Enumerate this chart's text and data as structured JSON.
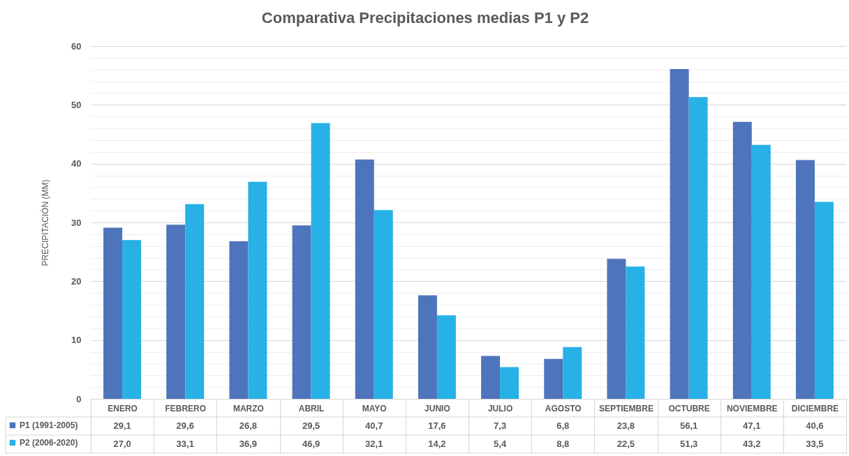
{
  "chart_data": {
    "type": "bar",
    "title": "Comparativa Precipitaciones medias P1 y P2",
    "ylabel": "PRECIPITACIÓN (MM)",
    "categories": [
      "ENERO",
      "FEBRERO",
      "MARZO",
      "ABRIL",
      "MAYO",
      "JUNIO",
      "JULIO",
      "AGOSTO",
      "SEPTIEMBRE",
      "OCTUBRE",
      "NOVIEMBRE",
      "DICIEMBRE"
    ],
    "series": [
      {
        "name": "P1 (1991-2005)",
        "color": "#4e74bb",
        "values": [
          29.1,
          29.6,
          26.8,
          29.5,
          40.7,
          17.6,
          7.3,
          6.8,
          23.8,
          56.1,
          47.1,
          40.6
        ],
        "value_labels": [
          "29,1",
          "29,6",
          "26,8",
          "29,5",
          "40,7",
          "17,6",
          "7,3",
          "6,8",
          "23,8",
          "56,1",
          "47,1",
          "40,6"
        ]
      },
      {
        "name": "P2 (2006-2020)",
        "color": "#27b1e6",
        "values": [
          27.0,
          33.1,
          36.9,
          46.9,
          32.1,
          14.2,
          5.4,
          8.8,
          22.5,
          51.3,
          43.2,
          33.5
        ],
        "value_labels": [
          "27,0",
          "33,1",
          "36,9",
          "46,9",
          "32,1",
          "14,2",
          "5,4",
          "8,8",
          "22,5",
          "51,3",
          "43,2",
          "33,5"
        ]
      }
    ],
    "ylim": [
      0,
      60
    ],
    "yticks": [
      0,
      {
        "value": 2,
        "label": null
      },
      {
        "value": 4,
        "label": null
      },
      {
        "value": 6,
        "label": null
      },
      {
        "value": 8,
        "label": null
      },
      10,
      {
        "value": 12,
        "label": null
      },
      {
        "value": 14,
        "label": null
      },
      {
        "value": 16,
        "label": null
      },
      {
        "value": 18,
        "label": null
      },
      20,
      {
        "value": 22,
        "label": null
      },
      {
        "value": 24,
        "label": null
      },
      {
        "value": 26,
        "label": null
      },
      {
        "value": 28,
        "label": null
      },
      30,
      {
        "value": 32,
        "label": null
      },
      {
        "value": 34,
        "label": null
      },
      {
        "value": 36,
        "label": null
      },
      {
        "value": 38,
        "label": null
      },
      40,
      {
        "value": 42,
        "label": null
      },
      {
        "value": 44,
        "label": null
      },
      {
        "value": 46,
        "label": null
      },
      {
        "value": 48,
        "label": null
      },
      50,
      {
        "value": 52,
        "label": null
      },
      {
        "value": 54,
        "label": null
      },
      {
        "value": 56,
        "label": null
      },
      {
        "value": 58,
        "label": null
      },
      60
    ],
    "grid": true,
    "legend": "bottom left"
  }
}
